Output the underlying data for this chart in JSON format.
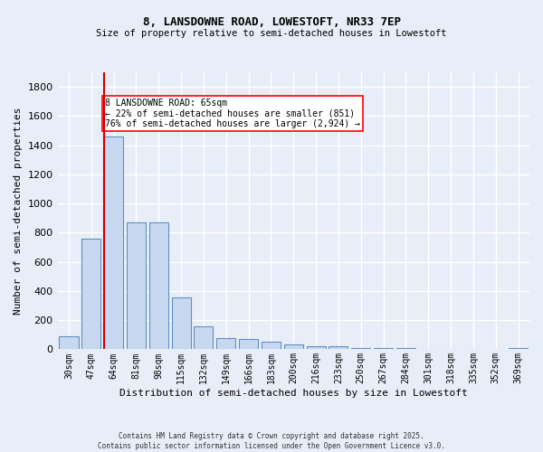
{
  "title_line1": "8, LANSDOWNE ROAD, LOWESTOFT, NR33 7EP",
  "title_line2": "Size of property relative to semi-detached houses in Lowestoft",
  "xlabel": "Distribution of semi-detached houses by size in Lowestoft",
  "ylabel": "Number of semi-detached properties",
  "categories": [
    "30sqm",
    "47sqm",
    "64sqm",
    "81sqm",
    "98sqm",
    "115sqm",
    "132sqm",
    "149sqm",
    "166sqm",
    "183sqm",
    "200sqm",
    "216sqm",
    "233sqm",
    "250sqm",
    "267sqm",
    "284sqm",
    "301sqm",
    "318sqm",
    "335sqm",
    "352sqm",
    "369sqm"
  ],
  "values": [
    90,
    760,
    1460,
    870,
    870,
    355,
    155,
    80,
    70,
    55,
    35,
    20,
    20,
    10,
    10,
    10,
    5,
    5,
    3,
    3,
    10
  ],
  "bar_color": "#c8d8f0",
  "bar_edge_color": "#6090c0",
  "red_line_x": 1.575,
  "annotation_text": "8 LANSDOWNE ROAD: 65sqm\n← 22% of semi-detached houses are smaller (851)\n76% of semi-detached houses are larger (2,924) →",
  "annotation_box_color": "white",
  "annotation_box_edge_color": "red",
  "red_line_color": "#cc0000",
  "ylim": [
    0,
    1900
  ],
  "yticks": [
    0,
    200,
    400,
    600,
    800,
    1000,
    1200,
    1400,
    1600,
    1800
  ],
  "background_color": "#e8eef8",
  "grid_color": "white",
  "footer_line1": "Contains HM Land Registry data © Crown copyright and database right 2025.",
  "footer_line2": "Contains public sector information licensed under the Open Government Licence v3.0."
}
